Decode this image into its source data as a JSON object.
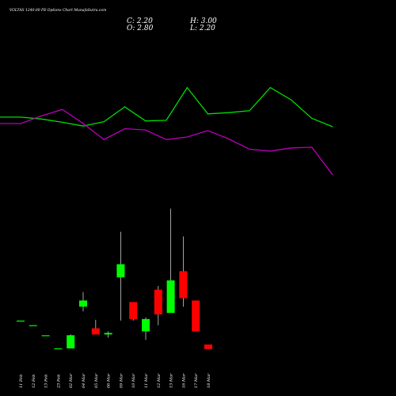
{
  "header": {
    "title": "VOLTAS 1240.00 PE Options Chart MunafaSutra.com",
    "close": "C: 2.20",
    "high": "H: 3.00",
    "open": "O: 2.80",
    "low": "L: 2.20"
  },
  "colors": {
    "background": "#000000",
    "up": "#00ff00",
    "down": "#ff0000",
    "line_green": "#00dd00",
    "line_magenta": "#bb00bb",
    "wick": "#cccccc"
  },
  "chart_data": [
    {
      "type": "line",
      "series": [
        {
          "values": [
            2.6,
            2.6,
            2.45,
            2.2,
            1.9,
            2.25,
            3.4,
            2.3,
            2.35,
            4.9,
            2.85,
            2.95,
            3.1,
            4.9,
            3.95,
            2.5,
            1.85
          ]
        },
        {
          "values": [
            2.1,
            2.1,
            2.7,
            3.2,
            2.1,
            0.85,
            1.7,
            1.6,
            0.85,
            1.05,
            1.55,
            0.9,
            0.1,
            -0.05,
            0.2,
            0.25,
            -1.9
          ]
        }
      ]
    },
    {
      "type": "candlestick",
      "categories": [
        "11 Feb",
        "12 Feb",
        "13 Feb",
        "23 Feb",
        "02 Mar",
        "04 Mar",
        "05 Mar",
        "06 Mar",
        "09 Mar",
        "10 Mar",
        "11 Mar",
        "12 Mar",
        "13 Mar",
        "16 Mar",
        "17 Mar",
        "18 Mar"
      ],
      "candles": [
        {
          "open": 1.55,
          "high": 1.55,
          "low": 1.55,
          "close": 1.55
        },
        {
          "open": 1.25,
          "high": 1.25,
          "low": 1.25,
          "close": 1.25
        },
        {
          "open": 0.6,
          "high": 0.6,
          "low": 0.6,
          "close": 0.6
        },
        {
          "open": -0.25,
          "high": -0.25,
          "low": -0.25,
          "close": -0.25
        },
        {
          "open": -0.25,
          "high": 0.65,
          "low": -0.25,
          "close": 0.6
        },
        {
          "open": 2.45,
          "high": 3.4,
          "low": 2.15,
          "close": 2.85
        },
        {
          "open": 1.05,
          "high": 1.6,
          "low": 0.65,
          "close": 0.65
        },
        {
          "open": 0.65,
          "high": 0.85,
          "low": 0.45,
          "close": 0.75
        },
        {
          "open": 4.35,
          "high": 7.3,
          "low": 1.55,
          "close": 5.2
        },
        {
          "open": 2.75,
          "high": 2.75,
          "low": 1.55,
          "close": 1.65
        },
        {
          "open": 0.85,
          "high": 1.75,
          "low": 0.3,
          "close": 1.65
        },
        {
          "open": 3.55,
          "high": 3.8,
          "low": 1.25,
          "close": 1.95
        },
        {
          "open": 2.05,
          "high": 8.8,
          "low": 2.05,
          "close": 4.15
        },
        {
          "open": 4.75,
          "high": 7.0,
          "low": 2.45,
          "close": 3.0
        },
        {
          "open": 2.85,
          "high": 2.85,
          "low": 0.85,
          "close": 0.85
        },
        {
          "open": 0.0,
          "high": 0.0,
          "low": -0.3,
          "close": -0.3
        }
      ]
    }
  ]
}
